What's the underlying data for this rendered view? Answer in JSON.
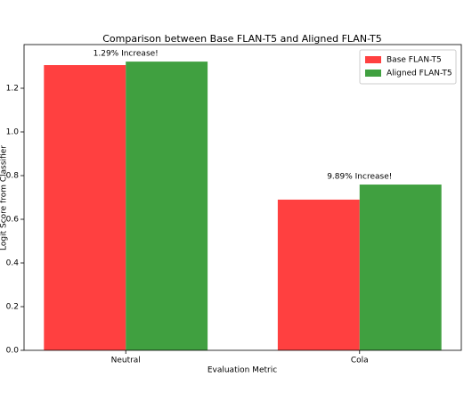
{
  "chart_data": {
    "type": "bar",
    "title": "Comparison between Base FLAN-T5 and Aligned FLAN-T5",
    "x_label": "Evaluation Metric",
    "y_label": "Logit Score from Classifier",
    "categories": [
      "Neutral",
      "Cola"
    ],
    "series": [
      {
        "name": "Base FLAN-T5",
        "color": "#ff4040",
        "values": [
          1.306,
          0.69
        ]
      },
      {
        "name": "Aligned FLAN-T5",
        "color": "#40a040",
        "values": [
          1.322,
          0.759
        ]
      }
    ],
    "annotations": [
      "1.29% Increase!",
      "9.89% Increase!"
    ],
    "ylim": [
      0,
      1.4
    ],
    "yticks": [
      {
        "value": 0,
        "label": "0.0"
      },
      0.2,
      0.4,
      0.6,
      0.8,
      {
        "value": 1,
        "label": "1.0"
      },
      1.2
    ],
    "legend": "upper right",
    "grid": false
  }
}
